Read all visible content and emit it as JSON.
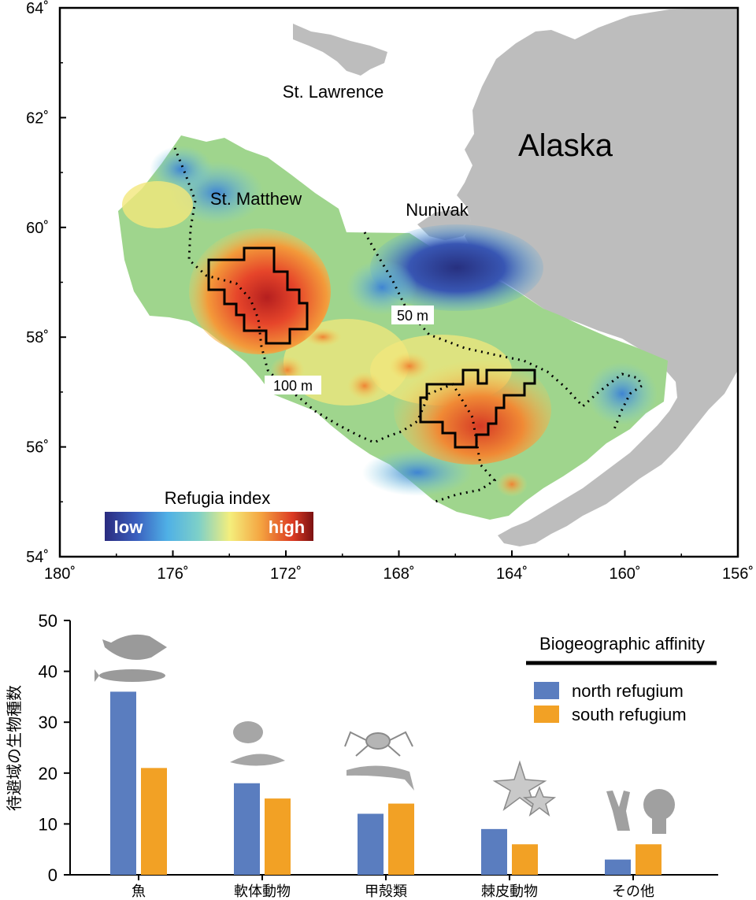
{
  "map": {
    "x_ticks": [
      "180˚",
      "176˚",
      "172˚",
      "168˚",
      "164˚",
      "160˚",
      "156˚"
    ],
    "y_ticks": [
      "64˚",
      "62˚",
      "60˚",
      "58˚",
      "56˚",
      "54˚"
    ],
    "lon_range": [
      180,
      156
    ],
    "lat_range": [
      54,
      64
    ],
    "place_labels": {
      "alaska": "Alaska",
      "st_lawrence": "St. Lawrence",
      "st_matthew": "St. Matthew",
      "nunivak": "Nunivak"
    },
    "contours": {
      "fifty": "50 m",
      "hundred": "100 m"
    },
    "legend": {
      "title": "Refugia index",
      "low": "low",
      "high": "high"
    },
    "colors": {
      "land": "#bdbdbd",
      "high": "#c4271b",
      "low": "#2c3288"
    }
  },
  "chart_data": {
    "type": "bar",
    "title": "",
    "xlabel": "",
    "ylabel": "待避域の生物種数",
    "ylim": [
      0,
      50
    ],
    "y_ticks": [
      "0",
      "10",
      "20",
      "30",
      "40",
      "50"
    ],
    "categories": [
      "魚",
      "軟体動物",
      "甲殻類",
      "棘皮動物",
      "その他"
    ],
    "series": [
      {
        "name": "north refugium",
        "color": "#5a7dbf",
        "values": [
          36,
          18,
          12,
          9,
          3
        ]
      },
      {
        "name": "south refugium",
        "color": "#f2a125",
        "values": [
          21,
          15,
          14,
          6,
          6
        ]
      }
    ],
    "legend_title": "Biogeographic affinity"
  }
}
